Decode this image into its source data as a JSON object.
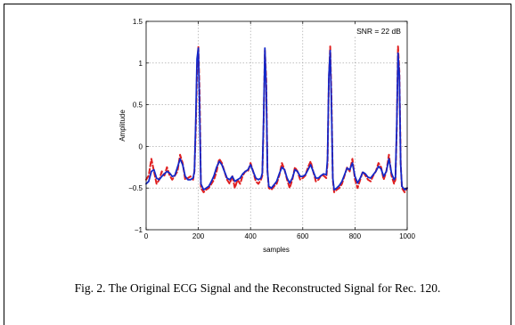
{
  "caption": "Fig. 2. The Original ECG Signal and the Reconstructed Signal for Rec. 120.",
  "chart_data": {
    "type": "line",
    "title": "",
    "annotation": "SNR = 22 dB",
    "xlabel": "samples",
    "ylabel": "Amplitude",
    "xlim": [
      0,
      1000
    ],
    "ylim": [
      -1,
      1.5
    ],
    "x_ticks": [
      0,
      200,
      400,
      600,
      800,
      1000
    ],
    "x_tick_labels": [
      "0",
      "200",
      "400",
      "600",
      "800",
      "1000"
    ],
    "y_ticks": [
      -1,
      -0.5,
      0,
      0.5,
      1,
      1.5
    ],
    "y_tick_labels": [
      "−1",
      "−0.5",
      "0",
      "0.5",
      "1",
      "1.5"
    ],
    "grid": true,
    "colors": {
      "original": "#e02020",
      "reconstructed": "#1428c8"
    },
    "series": [
      {
        "line_style": "dashed",
        "x": [
          0,
          10,
          20,
          30,
          40,
          50,
          60,
          70,
          80,
          90,
          100,
          110,
          120,
          130,
          140,
          150,
          160,
          170,
          180,
          185,
          190,
          195,
          200,
          205,
          210,
          220,
          230,
          240,
          250,
          260,
          270,
          280,
          290,
          300,
          310,
          320,
          330,
          340,
          350,
          360,
          370,
          380,
          390,
          400,
          410,
          420,
          430,
          440,
          445,
          450,
          455,
          460,
          465,
          470,
          480,
          490,
          500,
          510,
          520,
          530,
          540,
          550,
          560,
          570,
          580,
          590,
          600,
          610,
          620,
          630,
          640,
          650,
          660,
          670,
          680,
          690,
          695,
          700,
          705,
          710,
          715,
          720,
          730,
          740,
          750,
          760,
          770,
          780,
          790,
          800,
          810,
          820,
          830,
          840,
          850,
          860,
          870,
          880,
          890,
          900,
          910,
          920,
          930,
          940,
          950,
          955,
          960,
          965,
          970,
          975,
          980,
          990,
          1000
        ],
        "y": [
          -0.4,
          -0.35,
          -0.15,
          -0.3,
          -0.45,
          -0.4,
          -0.3,
          -0.35,
          -0.25,
          -0.35,
          -0.4,
          -0.35,
          -0.3,
          -0.1,
          -0.2,
          -0.4,
          -0.38,
          -0.36,
          -0.4,
          -0.3,
          0.2,
          0.9,
          1.2,
          0.6,
          -0.5,
          -0.55,
          -0.52,
          -0.5,
          -0.45,
          -0.4,
          -0.3,
          -0.15,
          -0.2,
          -0.3,
          -0.4,
          -0.45,
          -0.35,
          -0.5,
          -0.4,
          -0.45,
          -0.35,
          -0.3,
          -0.3,
          -0.2,
          -0.3,
          -0.42,
          -0.45,
          -0.4,
          -0.35,
          0.3,
          1.15,
          0.8,
          -0.3,
          -0.5,
          -0.52,
          -0.48,
          -0.45,
          -0.35,
          -0.2,
          -0.28,
          -0.4,
          -0.5,
          -0.4,
          -0.25,
          -0.3,
          -0.4,
          -0.38,
          -0.35,
          -0.25,
          -0.18,
          -0.3,
          -0.42,
          -0.4,
          -0.35,
          -0.35,
          -0.38,
          -0.2,
          0.8,
          1.2,
          0.6,
          -0.4,
          -0.55,
          -0.52,
          -0.5,
          -0.45,
          -0.35,
          -0.25,
          -0.3,
          -0.15,
          -0.4,
          -0.5,
          -0.4,
          -0.3,
          -0.35,
          -0.4,
          -0.42,
          -0.35,
          -0.3,
          -0.2,
          -0.25,
          -0.4,
          -0.3,
          -0.1,
          -0.35,
          -0.45,
          -0.4,
          0.2,
          1.2,
          0.9,
          -0.2,
          -0.5,
          -0.55,
          -0.5
        ]
      },
      {
        "line_style": "solid",
        "x": [
          0,
          10,
          20,
          30,
          40,
          50,
          60,
          70,
          80,
          90,
          100,
          110,
          120,
          130,
          140,
          150,
          160,
          170,
          180,
          185,
          190,
          195,
          200,
          205,
          210,
          220,
          230,
          240,
          250,
          260,
          270,
          280,
          290,
          300,
          310,
          320,
          330,
          340,
          350,
          360,
          370,
          380,
          390,
          400,
          410,
          420,
          430,
          440,
          445,
          450,
          455,
          460,
          465,
          470,
          480,
          490,
          500,
          510,
          520,
          530,
          540,
          550,
          560,
          570,
          580,
          590,
          600,
          610,
          620,
          630,
          640,
          650,
          660,
          670,
          680,
          690,
          695,
          700,
          705,
          710,
          715,
          720,
          730,
          740,
          750,
          760,
          770,
          780,
          790,
          800,
          810,
          820,
          830,
          840,
          850,
          860,
          870,
          880,
          890,
          900,
          910,
          920,
          930,
          940,
          950,
          955,
          960,
          965,
          970,
          975,
          980,
          990,
          1000
        ],
        "y": [
          -0.45,
          -0.42,
          -0.3,
          -0.28,
          -0.38,
          -0.4,
          -0.36,
          -0.33,
          -0.3,
          -0.32,
          -0.36,
          -0.35,
          -0.25,
          -0.15,
          -0.22,
          -0.36,
          -0.4,
          -0.4,
          -0.38,
          -0.3,
          0.3,
          1.05,
          1.18,
          0.4,
          -0.45,
          -0.52,
          -0.5,
          -0.48,
          -0.42,
          -0.35,
          -0.25,
          -0.18,
          -0.22,
          -0.3,
          -0.38,
          -0.4,
          -0.36,
          -0.42,
          -0.4,
          -0.38,
          -0.33,
          -0.3,
          -0.28,
          -0.22,
          -0.3,
          -0.38,
          -0.4,
          -0.38,
          -0.32,
          0.35,
          1.18,
          0.7,
          -0.3,
          -0.48,
          -0.5,
          -0.46,
          -0.42,
          -0.33,
          -0.25,
          -0.28,
          -0.38,
          -0.44,
          -0.38,
          -0.28,
          -0.3,
          -0.36,
          -0.36,
          -0.34,
          -0.28,
          -0.22,
          -0.3,
          -0.38,
          -0.38,
          -0.35,
          -0.33,
          -0.34,
          -0.15,
          0.85,
          1.15,
          0.5,
          -0.38,
          -0.52,
          -0.5,
          -0.47,
          -0.42,
          -0.34,
          -0.26,
          -0.28,
          -0.2,
          -0.36,
          -0.44,
          -0.38,
          -0.31,
          -0.33,
          -0.37,
          -0.38,
          -0.34,
          -0.3,
          -0.24,
          -0.27,
          -0.36,
          -0.3,
          -0.15,
          -0.32,
          -0.4,
          -0.37,
          0.25,
          1.12,
          0.85,
          -0.22,
          -0.48,
          -0.52,
          -0.5
        ]
      }
    ]
  }
}
